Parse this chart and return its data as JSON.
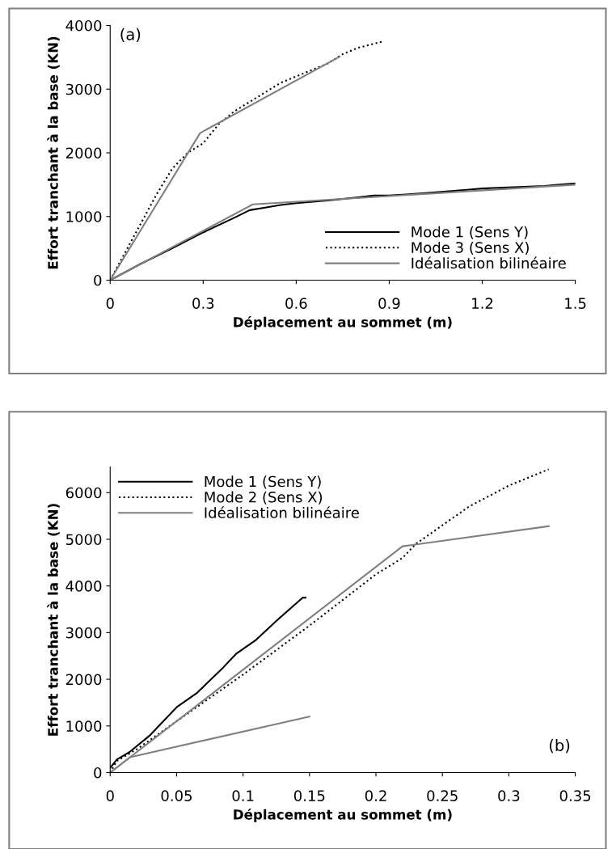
{
  "chart_data": [
    {
      "type": "line",
      "xlabel": "Déplacement au sommet (m)",
      "ylabel": "Effort tranchant à la base (KN)",
      "annotations": [
        "(a)"
      ],
      "xlim": [
        0,
        1.5
      ],
      "xticks": [
        0,
        0.3,
        0.6,
        0.9,
        1.2,
        1.5
      ],
      "ylim": [
        0,
        4000
      ],
      "yticks": [
        0,
        1000,
        2000,
        3000,
        4000
      ],
      "grid": false,
      "legend": "bottom right",
      "series": [
        {
          "name": "Mode 1 (Sens Y)",
          "color": "#000000",
          "line_style": "solid",
          "x": [
            0,
            0.1,
            0.2,
            0.3,
            0.4,
            0.45,
            0.5,
            0.55,
            0.6,
            0.7,
            0.8,
            0.85,
            0.9,
            1.0,
            1.1,
            1.15,
            1.2,
            1.3,
            1.4,
            1.45,
            1.5
          ],
          "values": [
            0,
            260,
            500,
            750,
            980,
            1100,
            1140,
            1180,
            1210,
            1250,
            1300,
            1330,
            1330,
            1360,
            1400,
            1420,
            1440,
            1460,
            1480,
            1500,
            1520
          ]
        },
        {
          "name": "Mode 3 (Sens X)",
          "color": "#000000",
          "line_style": "dotted",
          "x": [
            0,
            0.05,
            0.1,
            0.15,
            0.2,
            0.25,
            0.3,
            0.35,
            0.4,
            0.45,
            0.5,
            0.55,
            0.6,
            0.7,
            0.75,
            0.8,
            0.88
          ],
          "values": [
            0,
            450,
            900,
            1350,
            1750,
            2000,
            2150,
            2450,
            2650,
            2800,
            2950,
            3100,
            3200,
            3400,
            3550,
            3650,
            3750
          ]
        },
        {
          "name": "Idéalisation bilinéaire",
          "color": "#808080",
          "line_style": "solid",
          "x": [
            0,
            0.29,
            0.74
          ],
          "values": [
            0,
            2310,
            3510
          ]
        },
        {
          "color": "#808080",
          "line_style": "solid",
          "x": [
            0,
            0.46,
            1.5
          ],
          "values": [
            0,
            1190,
            1500
          ]
        }
      ]
    },
    {
      "type": "line",
      "xlabel": "Déplacement au sommet (m)",
      "ylabel": "Effort tranchant à la base (KN)",
      "annotations": [
        "(b)"
      ],
      "xlim": [
        0,
        0.35
      ],
      "xticks": [
        0,
        0.05,
        0.1,
        0.15,
        0.2,
        0.25,
        0.3,
        0.35
      ],
      "ylim": [
        0,
        6550
      ],
      "yticks": [
        0,
        1000,
        2000,
        3000,
        4000,
        5000,
        6000
      ],
      "grid": false,
      "legend": "top left",
      "series": [
        {
          "name": "Mode 1 (Sens Y)",
          "color": "#000000",
          "line_style": "solid",
          "x": [
            0,
            0.005,
            0.015,
            0.03,
            0.04,
            0.05,
            0.065,
            0.085,
            0.095,
            0.11,
            0.125,
            0.145,
            0.147
          ],
          "values": [
            100,
            280,
            450,
            800,
            1100,
            1400,
            1700,
            2250,
            2550,
            2850,
            3250,
            3750,
            3750
          ]
        },
        {
          "name": "Mode 2 (Sens X)",
          "color": "#000000",
          "line_style": "dotted",
          "x": [
            0,
            0.005,
            0.02,
            0.05,
            0.1,
            0.15,
            0.2,
            0.22,
            0.23,
            0.27,
            0.3,
            0.33
          ],
          "values": [
            0,
            250,
            500,
            1100,
            2100,
            3150,
            4250,
            4600,
            4900,
            5700,
            6150,
            6500
          ]
        },
        {
          "name": "Idéalisation bilinéaire",
          "color": "#808080",
          "line_style": "solid",
          "x": [
            0,
            0.22,
            0.33
          ],
          "values": [
            0,
            4850,
            5280
          ]
        },
        {
          "color": "#808080",
          "line_style": "solid",
          "x": [
            0,
            0.015,
            0.15
          ],
          "values": [
            0,
            330,
            1200
          ]
        }
      ]
    }
  ]
}
